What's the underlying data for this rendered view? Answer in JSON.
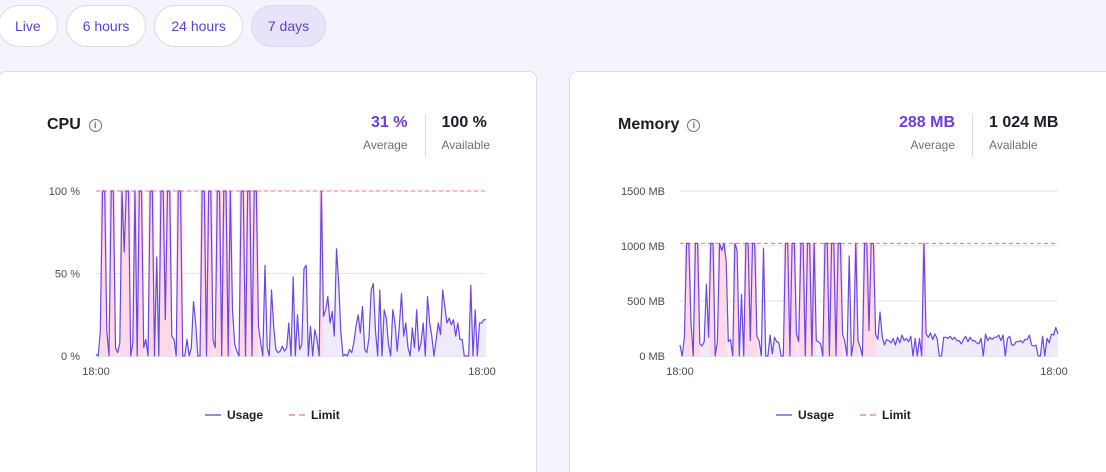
{
  "time_ranges": [
    {
      "label": "Live",
      "active": false
    },
    {
      "label": "6 hours",
      "active": false
    },
    {
      "label": "24 hours",
      "active": false
    },
    {
      "label": "7 days",
      "active": true
    }
  ],
  "colors": {
    "accent": "#6c3ce0",
    "usage_line": "#6c47e0",
    "usage_fill": "#efeafc",
    "limit_line": "#f0709a",
    "over_limit_fill": "#ffd6e4",
    "background": "#f5f4fd"
  },
  "cpu": {
    "title": "CPU",
    "info_icon": "info-circle-icon",
    "average_value": "31 %",
    "average_label": "Average",
    "available_value": "100 %",
    "available_label": "Available",
    "legend": {
      "usage": "Usage",
      "limit": "Limit"
    }
  },
  "memory": {
    "title": "Memory",
    "info_icon": "info-circle-icon",
    "average_value": "288 MB",
    "average_label": "Average",
    "available_value": "1 024 MB",
    "available_label": "Available",
    "legend": {
      "usage": "Usage",
      "limit": "Limit"
    }
  },
  "chart_data": [
    {
      "type": "line",
      "title": "CPU",
      "xlabel": "",
      "ylabel": "",
      "x_ticks": [
        "18:00",
        "18:00"
      ],
      "y_ticks": [
        "0 %",
        "50 %",
        "100 %"
      ],
      "ylim": [
        0,
        100
      ],
      "limit": 100,
      "legend": [
        "Usage",
        "Limit"
      ],
      "legend_position": "bottom",
      "grid": true,
      "series": [
        {
          "name": "Usage",
          "values": [
            1,
            0,
            15,
            100,
            100,
            15,
            0,
            100,
            100,
            5,
            2,
            8,
            100,
            63,
            100,
            100,
            0,
            8,
            100,
            0,
            100,
            100,
            5,
            10,
            0,
            100,
            100,
            0,
            60,
            0,
            100,
            100,
            22,
            100,
            100,
            12,
            10,
            0,
            100,
            100,
            0,
            0,
            10,
            0,
            5,
            33,
            20,
            0,
            0,
            100,
            100,
            0,
            100,
            100,
            10,
            5,
            100,
            100,
            0,
            100,
            100,
            0,
            100,
            28,
            7,
            3,
            0,
            100,
            100,
            0,
            100,
            100,
            0,
            100,
            100,
            18,
            8,
            0,
            55,
            5,
            0,
            40,
            18,
            4,
            2,
            3,
            6,
            3,
            5,
            20,
            0,
            48,
            0,
            25,
            4,
            7,
            53,
            55,
            0,
            18,
            0,
            16,
            10,
            0,
            100,
            24,
            28,
            36,
            20,
            27,
            12,
            65,
            44,
            15,
            0,
            1,
            0,
            4,
            2,
            8,
            18,
            25,
            14,
            30,
            4,
            2,
            11,
            40,
            44,
            15,
            0,
            40,
            0,
            28,
            23,
            7,
            0,
            28,
            20,
            3,
            18,
            38,
            12,
            20,
            5,
            0,
            17,
            5,
            28,
            3,
            8,
            20,
            0,
            36,
            20,
            12,
            0,
            10,
            20,
            13,
            40,
            30,
            20,
            23,
            19,
            22,
            12,
            20,
            10,
            10,
            0,
            0,
            0,
            43,
            0,
            28,
            0,
            20,
            20,
            22,
            22
          ]
        },
        {
          "name": "Limit",
          "values": [
            100
          ]
        }
      ]
    },
    {
      "type": "line",
      "title": "Memory",
      "xlabel": "",
      "ylabel": "",
      "x_ticks": [
        "18:00",
        "18:00"
      ],
      "y_ticks": [
        "0 MB",
        "500 MB",
        "1000 MB",
        "1500 MB"
      ],
      "ylim": [
        0,
        1500
      ],
      "limit": 1024,
      "legend": [
        "Usage",
        "Limit"
      ],
      "legend_position": "bottom",
      "grid": true,
      "series": [
        {
          "name": "Usage",
          "values": [
            100,
            0,
            170,
            1024,
            1024,
            300,
            0,
            1024,
            1024,
            110,
            90,
            130,
            650,
            170,
            1024,
            1024,
            0,
            130,
            1024,
            960,
            1024,
            860,
            130,
            150,
            0,
            1024,
            960,
            0,
            560,
            0,
            1024,
            1024,
            140,
            1024,
            1024,
            180,
            140,
            0,
            980,
            0,
            0,
            190,
            20,
            170,
            130,
            120,
            0,
            0,
            1024,
            1024,
            0,
            1024,
            1024,
            200,
            130,
            1024,
            1024,
            0,
            1024,
            1024,
            0,
            1024,
            140,
            130,
            110,
            0,
            1024,
            1024,
            0,
            1024,
            1024,
            0,
            1024,
            1024,
            200,
            130,
            0,
            910,
            0,
            130,
            1024,
            140,
            80,
            0,
            1024,
            1024,
            230,
            1024,
            1024,
            200,
            150,
            400,
            180,
            100,
            150,
            140,
            120,
            160,
            100,
            170,
            120,
            190,
            140,
            160,
            130,
            180,
            0,
            160,
            0,
            160,
            0,
            1024,
            200,
            170,
            210,
            150,
            200,
            160,
            0,
            0,
            170,
            170,
            160,
            180,
            150,
            170,
            140,
            140,
            110,
            150,
            180,
            130,
            170,
            140,
            140,
            120,
            110,
            160,
            0,
            200,
            140,
            170,
            150,
            170,
            170,
            190,
            140,
            190,
            0,
            160,
            180,
            100,
            100,
            130,
            130,
            140,
            120,
            150,
            150,
            190,
            100,
            90,
            100,
            0,
            0,
            180,
            0,
            160,
            120,
            200,
            190,
            260,
            200
          ]
        },
        {
          "name": "Limit",
          "values": [
            1024
          ]
        }
      ]
    }
  ]
}
